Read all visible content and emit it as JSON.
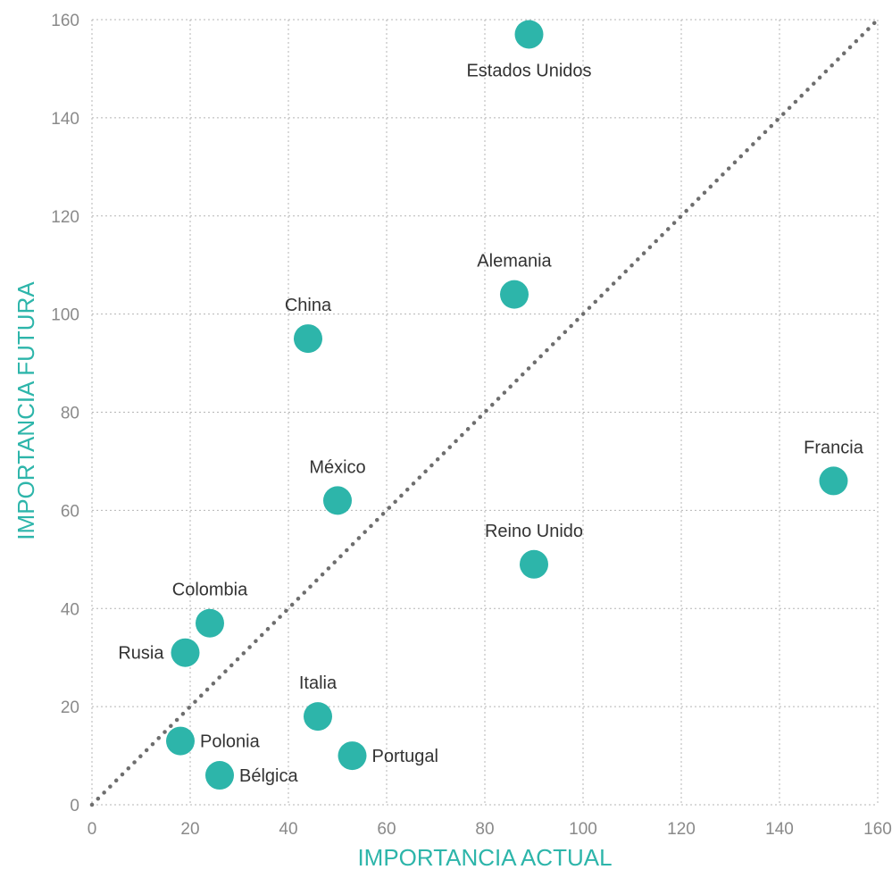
{
  "chart_data": {
    "type": "scatter",
    "title": "",
    "xlabel": "IMPORTANCIA ACTUAL",
    "ylabel": "IMPORTANCIA FUTURA",
    "xlim": [
      0,
      160
    ],
    "ylim": [
      0,
      160
    ],
    "xticks": [
      "0",
      "20",
      "40",
      "60",
      "80",
      "100",
      "120",
      "140",
      "160"
    ],
    "yticks": [
      "0",
      "20",
      "40",
      "60",
      "80",
      "100",
      "120",
      "140",
      "160"
    ],
    "grid": true,
    "reference_line": {
      "style": "dotted",
      "from": [
        0,
        0
      ],
      "to": [
        160,
        160
      ]
    },
    "colors": {
      "points": "#2db5aa",
      "axis_titles": "#2db5aa",
      "ticks": "#8a8a8a",
      "labels": "#333333",
      "grid": "#b5b5b5",
      "reference_line": "#6e6e6e"
    },
    "points": [
      {
        "label": "Estados Unidos",
        "x": 89,
        "y": 157,
        "label_pos": "below"
      },
      {
        "label": "Alemania",
        "x": 86,
        "y": 104,
        "label_pos": "above"
      },
      {
        "label": "China",
        "x": 44,
        "y": 95,
        "label_pos": "above"
      },
      {
        "label": "Francia",
        "x": 151,
        "y": 66,
        "label_pos": "above"
      },
      {
        "label": "México",
        "x": 50,
        "y": 62,
        "label_pos": "above"
      },
      {
        "label": "Reino Unido",
        "x": 90,
        "y": 49,
        "label_pos": "above"
      },
      {
        "label": "Colombia",
        "x": 24,
        "y": 37,
        "label_pos": "above"
      },
      {
        "label": "Rusia",
        "x": 19,
        "y": 31,
        "label_pos": "left"
      },
      {
        "label": "Italia",
        "x": 46,
        "y": 18,
        "label_pos": "above"
      },
      {
        "label": "Polonia",
        "x": 18,
        "y": 13,
        "label_pos": "right"
      },
      {
        "label": "Portugal",
        "x": 53,
        "y": 10,
        "label_pos": "right"
      },
      {
        "label": "Bélgica",
        "x": 26,
        "y": 6,
        "label_pos": "right"
      }
    ]
  }
}
